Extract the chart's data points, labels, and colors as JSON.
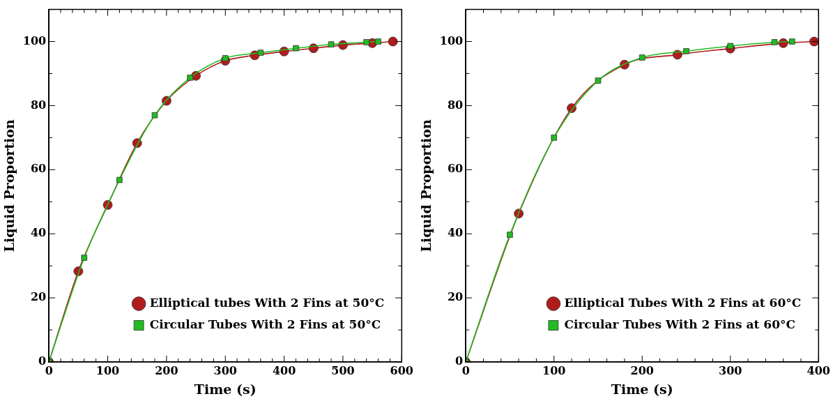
{
  "chart_data": [
    {
      "type": "line",
      "xlabel": "Time (s)",
      "ylabel": "Liquid Proportion",
      "legend": "bottom right",
      "line_style": "solid",
      "xlim": [
        0,
        600
      ],
      "ylim": [
        0,
        110
      ],
      "xticks": [
        0,
        {
          "value": 20,
          "label": null
        },
        {
          "value": 40,
          "label": null
        },
        {
          "value": 60,
          "label": null
        },
        {
          "value": 80,
          "label": null
        },
        100,
        {
          "value": 120,
          "label": null
        },
        {
          "value": 140,
          "label": null
        },
        {
          "value": 160,
          "label": null
        },
        {
          "value": 180,
          "label": null
        },
        200,
        {
          "value": 220,
          "label": null
        },
        {
          "value": 240,
          "label": null
        },
        {
          "value": 260,
          "label": null
        },
        {
          "value": 280,
          "label": null
        },
        300,
        {
          "value": 320,
          "label": null
        },
        {
          "value": 340,
          "label": null
        },
        {
          "value": 360,
          "label": null
        },
        {
          "value": 380,
          "label": null
        },
        400,
        {
          "value": 420,
          "label": null
        },
        {
          "value": 440,
          "label": null
        },
        {
          "value": 460,
          "label": null
        },
        {
          "value": 480,
          "label": null
        },
        500,
        {
          "value": 520,
          "label": null
        },
        {
          "value": 540,
          "label": null
        },
        {
          "value": 560,
          "label": null
        },
        {
          "value": 580,
          "label": null
        },
        600
      ],
      "yticks": [
        0,
        {
          "value": 10,
          "label": null
        },
        20,
        {
          "value": 30,
          "label": null
        },
        40,
        {
          "value": 50,
          "label": null
        },
        60,
        {
          "value": 70,
          "label": null
        },
        80,
        {
          "value": 90,
          "label": null
        },
        100,
        {
          "value": 110,
          "label": null
        }
      ],
      "series": [
        {
          "name": "Elliptical tubes With 2 Fins at 50°C",
          "color": "#b01c1c",
          "marker": "circle",
          "x": [
            0,
            50,
            100,
            150,
            200,
            250,
            300,
            350,
            400,
            450,
            500,
            550,
            585
          ],
          "values": [
            0,
            28.3,
            49,
            68.3,
            81.5,
            89.3,
            94,
            95.7,
            96.9,
            97.9,
            98.9,
            99.5,
            100
          ]
        },
        {
          "name": "Circular Tubes With 2 Fins at 50°C",
          "color": "#22bb22",
          "marker": "square",
          "x": [
            0,
            60,
            120,
            180,
            240,
            300,
            360,
            420,
            480,
            540,
            560
          ],
          "values": [
            0,
            32.5,
            56.8,
            77,
            88.7,
            94.8,
            96.5,
            97.9,
            99.1,
            99.8,
            100
          ]
        }
      ]
    },
    {
      "type": "line",
      "xlabel": "Time (s)",
      "ylabel": "Liquid Proportion",
      "legend": "bottom right",
      "line_style": "solid",
      "xlim": [
        0,
        400
      ],
      "ylim": [
        0,
        110
      ],
      "xticks": [
        0,
        {
          "value": 20,
          "label": null
        },
        {
          "value": 40,
          "label": null
        },
        {
          "value": 60,
          "label": null
        },
        {
          "value": 80,
          "label": null
        },
        100,
        {
          "value": 120,
          "label": null
        },
        {
          "value": 140,
          "label": null
        },
        {
          "value": 160,
          "label": null
        },
        {
          "value": 180,
          "label": null
        },
        200,
        {
          "value": 220,
          "label": null
        },
        {
          "value": 240,
          "label": null
        },
        {
          "value": 260,
          "label": null
        },
        {
          "value": 280,
          "label": null
        },
        300,
        {
          "value": 320,
          "label": null
        },
        {
          "value": 340,
          "label": null
        },
        {
          "value": 360,
          "label": null
        },
        {
          "value": 380,
          "label": null
        },
        400
      ],
      "yticks": [
        0,
        {
          "value": 10,
          "label": null
        },
        20,
        {
          "value": 30,
          "label": null
        },
        40,
        {
          "value": 50,
          "label": null
        },
        60,
        {
          "value": 70,
          "label": null
        },
        80,
        {
          "value": 90,
          "label": null
        },
        100,
        {
          "value": 110,
          "label": null
        }
      ],
      "series": [
        {
          "name": "Elliptical Tubes With 2 Fins at 60°C",
          "color": "#b01c1c",
          "marker": "circle",
          "x": [
            0,
            60,
            120,
            180,
            240,
            300,
            360,
            395
          ],
          "values": [
            0,
            46.3,
            79.2,
            92.8,
            95.9,
            97.8,
            99.5,
            100
          ]
        },
        {
          "name": "Circular Tubes With 2 Fins at 60°C",
          "color": "#22bb22",
          "marker": "square",
          "x": [
            0,
            50,
            100,
            150,
            200,
            250,
            300,
            350,
            370
          ],
          "values": [
            0,
            39.7,
            70,
            87.8,
            95,
            97,
            98.6,
            99.8,
            100
          ]
        }
      ]
    }
  ]
}
